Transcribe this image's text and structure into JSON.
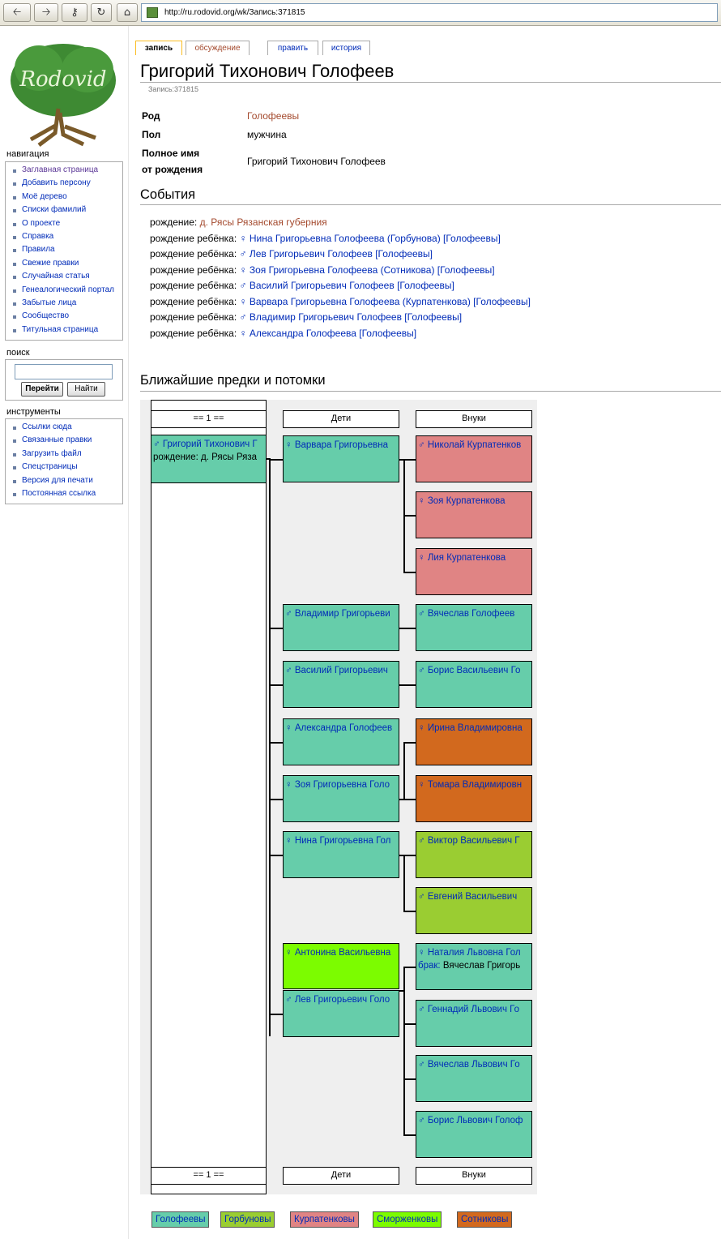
{
  "browser": {
    "url": "http://ru.rodovid.org/wk/Запись:371815",
    "buttons": [
      "back",
      "forward",
      "key",
      "reload",
      "home"
    ]
  },
  "logo": {
    "text": "Rodovid"
  },
  "sidebar": {
    "navigation_title": "навигация",
    "navigation": [
      "Заглавная страница",
      "Добавить персону",
      "Моё дерево",
      "Списки фамилий",
      "О проекте",
      "Справка",
      "Правила",
      "Свежие правки",
      "Случайная статья",
      "Генеалогический портал",
      "Забытые лица",
      "Сообщество",
      "Титульная страница"
    ],
    "search_title": "поиск",
    "search_go": "Перейти",
    "search_find": "Найти",
    "tools_title": "инструменты",
    "tools": [
      "Ссылки сюда",
      "Связанные правки",
      "Загрузить файл",
      "Спецстраницы",
      "Версия для печати",
      "Постоянная ссылка"
    ]
  },
  "tabs": [
    "запись",
    "обсуждение",
    "править",
    "история"
  ],
  "page": {
    "title": "Григорий Тихонович Голофеев",
    "subtitle": "Запись:371815",
    "fields": [
      {
        "label": "Род",
        "value": "Голофеевы"
      },
      {
        "label": "Пол",
        "value": "мужчина"
      },
      {
        "label": "Полное имя",
        "label2": "от рождения",
        "value": "Григорий Тихонович Голофеев"
      }
    ],
    "events_title": "События",
    "events": [
      {
        "label": "рождение:",
        "text": "д. Рясы Рязанская губерния",
        "sym": ""
      },
      {
        "label": "рождение ребёнка:",
        "sym": "♀",
        "text": "Нина Григорьевна Голофеева (Горбунова) [Голофеевы]"
      },
      {
        "label": "рождение ребёнка:",
        "sym": "♂",
        "text": "Лев Григорьевич Голофеев [Голофеевы]"
      },
      {
        "label": "рождение ребёнка:",
        "sym": "♀",
        "text": "Зоя Григорьевна Голофеева (Сотникова) [Голофеевы]"
      },
      {
        "label": "рождение ребёнка:",
        "sym": "♂",
        "text": "Василий Григорьевич Голофеев [Голофеевы]"
      },
      {
        "label": "рождение ребёнка:",
        "sym": "♀",
        "text": "Варвара Григорьевна Голофеева (Курпатенкова) [Голофеевы]"
      },
      {
        "label": "рождение ребёнка:",
        "sym": "♂",
        "text": "Владимир Григорьевич Голофеев [Голофеевы]"
      },
      {
        "label": "рождение ребёнка:",
        "sym": "♀",
        "text": "Александра Голофеева [Голофеевы]"
      }
    ],
    "tree_title": "Ближайшие предки и потомки"
  },
  "tree": {
    "col_gen": "== 1 ==",
    "col_children": "Дети",
    "col_grandchildren": "Внуки",
    "root": {
      "name": "♂ Григорий Тихонович Г",
      "line2": "рождение: д. Рясы Ряза"
    },
    "children": [
      "♀ Варвара Григорьевна",
      "♂ Владимир Григорьеви",
      "♂ Василий Григорьевич",
      "♀ Александра Голофеев",
      "♀ Зоя Григорьевна Голо",
      "♀ Нина Григорьевна Гол",
      "♀ Антонина Васильевна",
      "♂ Лев Григорьевич Голо"
    ],
    "grandchildren": [
      "♂ Николай Курпатенков",
      "♀ Зоя Курпатенкова",
      "♀ Лия Курпатенкова",
      "♂ Вячеслав Голофеев",
      "♂ Борис Васильевич Го",
      "♀ Ирина Владимировна",
      "♀ Томара Владимировн",
      "♂ Виктор Васильевич Г",
      "♂ Евгений Васильевич",
      "♀ Наталия Львовна Гол",
      "♂ Геннадий Львович Го",
      "♂ Вячеслав Львович Го",
      "♂ Борис Львович Голоф"
    ],
    "marriage_label": "брак:",
    "marriage_text": "Вячеслав Григорь"
  },
  "legend": [
    "Голофеевы",
    "Горбуновы",
    "Курпатенковы",
    "Сморженковы",
    "Сотниковы"
  ],
  "colors": {
    "Голофеевы": "#66cdaa",
    "Горбуновы": "#9acd32",
    "Курпатенковы": "#e08484",
    "Сморженковы": "#7cfc00",
    "Сотниковы": "#d2691e"
  }
}
